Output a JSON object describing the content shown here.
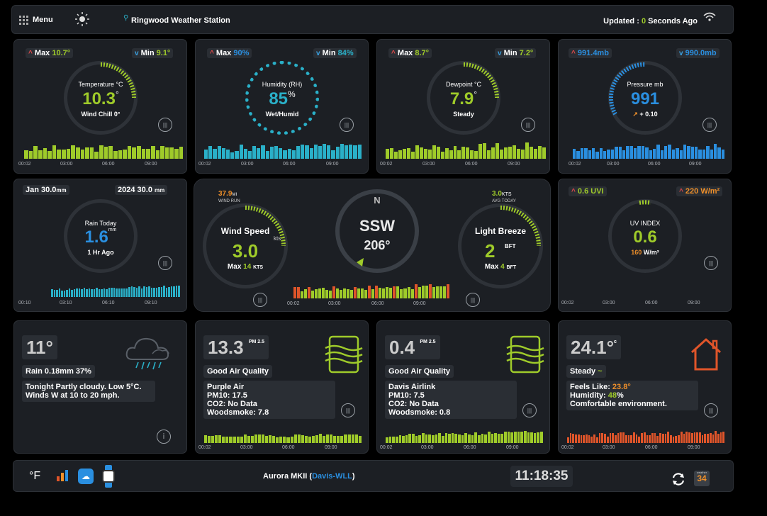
{
  "header": {
    "menu_label": "Menu",
    "station_name": "Ringwood Weather Station",
    "updated_prefix": "Updated : ",
    "updated_value": "0",
    "updated_suffix": " Seconds Ago"
  },
  "temperature": {
    "max_label": "Max",
    "max_value": "10.7°",
    "min_label": "Min",
    "min_value": "9.1°",
    "title": "Temperature °C",
    "value": "10.3",
    "unit": "°",
    "sub": "Wind Chill 0°",
    "axis": [
      "00:02",
      "03:00",
      "06:00",
      "09:00"
    ]
  },
  "humidity": {
    "max_label": "Max",
    "max_value": "90%",
    "min_label": "Min",
    "min_value": "84%",
    "title": "Humidity (RH)",
    "value": "85",
    "unit": "%",
    "sub": "Wet/Humid",
    "axis": [
      "00:02",
      "03:00",
      "06:00",
      "09:00"
    ]
  },
  "dewpoint": {
    "max_label": "Max",
    "max_value": "8.7°",
    "min_label": "Min",
    "min_value": "7.2°",
    "title": "Dewpoint °C",
    "value": "7.9",
    "unit": "°",
    "sub": "Steady",
    "axis": [
      "00:02",
      "03:00",
      "06:00",
      "09:00"
    ]
  },
  "pressure": {
    "max_value": "991.4mb",
    "min_value": "990.0mb",
    "title": "Pressure mb",
    "value": "991",
    "trend": "+ 0.10",
    "axis": [
      "00:02",
      "03:00",
      "06:00",
      "09:00"
    ]
  },
  "rain": {
    "month_label": "Jan 30.0",
    "month_unit": "mm",
    "year_label": "2024 30.0",
    "year_unit": "mm",
    "title": "Rain Today",
    "value": "1.6",
    "unit": "mm",
    "sub": "1 Hr Ago",
    "axis": [
      "00:10",
      "03:10",
      "06:10",
      "09:10"
    ]
  },
  "wind": {
    "run_value": "37.9",
    "run_unit": "MI",
    "run_label": "WIND RUN",
    "avg_value": "3.0",
    "avg_unit": "KTS",
    "avg_label": "AVG TODAY",
    "speed_title": "Wind Speed",
    "speed_unit": "kts",
    "speed_value": "3.0",
    "speed_max_label": "Max",
    "speed_max_value": "14",
    "speed_max_unit": "KTS",
    "compass_north": "N",
    "direction": "SSW",
    "degrees": "206°",
    "beaufort_title": "Light Breeze",
    "beaufort_value": "2",
    "beaufort_unit": "BFT",
    "beaufort_max_label": "Max",
    "beaufort_max_value": "4",
    "beaufort_max_unit": "BFT",
    "axis": [
      "00:02",
      "03:00",
      "06:00",
      "09:00"
    ]
  },
  "uv": {
    "uvi_value": "0.6 UVI",
    "solar_value": "220 W/m²",
    "title": "UV INDEX",
    "value": "0.6",
    "solar_now_value": "160",
    "solar_now_unit": "W/m²",
    "axis": [
      "00:02",
      "03:00",
      "06:00",
      "09:00"
    ]
  },
  "forecast": {
    "temp": "11°",
    "rain": "Rain 0.18mm 37%",
    "text_line1": "Tonight Partly cloudy. Low 5°C.",
    "text_line2": "Winds W at 10 to 20 mph."
  },
  "purpleair": {
    "value": "13.3",
    "unit": "PM 2.5",
    "quality": "Good Air Quality",
    "lines": [
      "Purple Air",
      "PM10: 17.5",
      "CO2: No Data",
      "Woodsmoke: 7.8"
    ],
    "axis": [
      "00:02",
      "03:00",
      "06:00",
      "09:00"
    ]
  },
  "airlink": {
    "value": "0.4",
    "unit": "PM 2.5",
    "quality": "Good Air Quality",
    "lines": [
      "Davis Airlink",
      "PM10: 7.5",
      "CO2: No Data",
      "Woodsmoke: 0.8"
    ],
    "axis": [
      "00:02",
      "03:00",
      "06:00",
      "09:00"
    ]
  },
  "indoor": {
    "value": "24.1°",
    "unit": "c",
    "trend": "Steady",
    "feels_label": "Feels Like: ",
    "feels_value": "23.8°",
    "humidity_label": "Humidity: ",
    "humidity_value": "48",
    "humidity_unit": "%",
    "comfort": "Comfortable environment.",
    "axis": [
      "00:02",
      "03:00",
      "06:00",
      "09:00"
    ]
  },
  "footer": {
    "unit_toggle": "°F",
    "firmware_prefix": "Aurora MKII (",
    "firmware_link": "Davis-WLL",
    "firmware_suffix": ")",
    "clock": "11:18:35",
    "calendar_month": "weather",
    "calendar_day": "34"
  },
  "colors": {
    "green": "#9fcb2a",
    "blue": "#2a8fe0",
    "teal": "#2ab0c8",
    "orange": "#f0902a",
    "red": "#e04a4a",
    "background": "#1c1f24"
  }
}
